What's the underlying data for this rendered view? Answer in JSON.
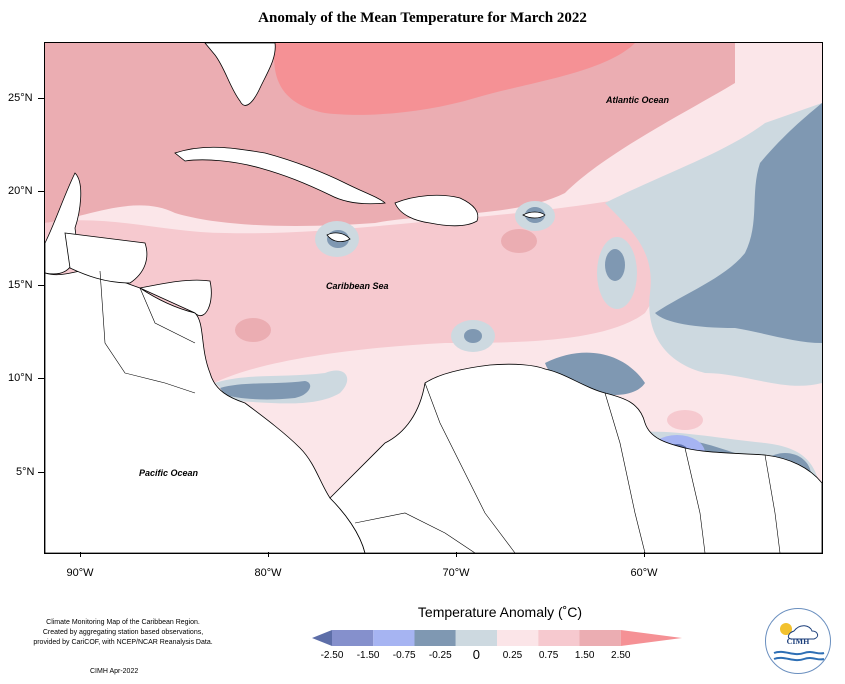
{
  "title": "Anomaly of the Mean Temperature for March 2022",
  "axes": {
    "y_ticks": [
      "25°N",
      "20°N",
      "15°N",
      "10°N",
      "5°N"
    ],
    "x_ticks": [
      "90°W",
      "80°W",
      "70°W",
      "60°W"
    ]
  },
  "labels": {
    "atlantic": "Atlantic Ocean",
    "caribbean": "Caribbean Sea",
    "pacific": "Pacific Ocean"
  },
  "legend": {
    "title": "Temperature Anomaly (˚C)",
    "ticks": [
      "-2.50",
      "-1.50",
      "-0.75",
      "-0.25",
      "0",
      "0.25",
      "0.75",
      "1.50",
      "2.50"
    ],
    "colors": [
      "#5d6ea8",
      "#8590cc",
      "#a6b4f2",
      "#7f98b2",
      "#cdd9e0",
      "#fbe5e8",
      "#f6c9cf",
      "#ebadb2",
      "#f59195"
    ]
  },
  "credits": {
    "line1": "Climate Monitoring Map of the Caribbean Region.",
    "line2": "Created by aggregating station based observations,",
    "line3": "provided by CariCOF, with NCEP/NCAR Reanalysis Data.",
    "date": "CIMH Apr-2022"
  },
  "logo": {
    "text": "CIMH"
  }
}
